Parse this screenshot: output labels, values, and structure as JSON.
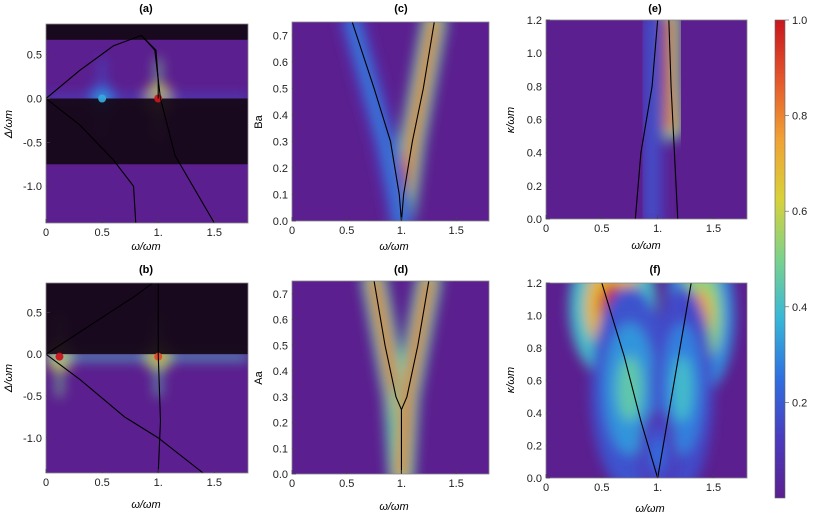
{
  "colorbar": {
    "ticks": [
      {
        "value": 1.0,
        "label": "1.0"
      },
      {
        "value": 0.8,
        "label": "0.8"
      },
      {
        "value": 0.6,
        "label": "0.6"
      },
      {
        "value": 0.4,
        "label": "0.4"
      },
      {
        "value": 0.2,
        "label": "0.2"
      }
    ],
    "colors": [
      "#5b1f8f",
      "#4a3cbe",
      "#2f6fe0",
      "#37b7d8",
      "#7cd28c",
      "#d8d23a",
      "#f0a235",
      "#e4572c",
      "#c8161e"
    ]
  },
  "chart_data": [
    {
      "id": "a",
      "type": "heatmap",
      "title": "(a)",
      "xlabel": "ω/ωm",
      "ylabel": "Δ/ωm",
      "xlim": [
        0,
        1.8
      ],
      "ylim": [
        -1.42,
        0.85
      ],
      "xticks": [
        {
          "v": 0,
          "t": "0"
        },
        {
          "v": 0.5,
          "t": "0.5"
        },
        {
          "v": 1,
          "t": "1."
        },
        {
          "v": 1.5,
          "t": "1.5"
        }
      ],
      "yticks": [
        {
          "v": 0.5,
          "t": "0.5"
        },
        {
          "v": 0,
          "t": "0.0"
        },
        {
          "v": -0.5,
          "t": "-0.5"
        },
        {
          "v": -1,
          "t": "-1.0"
        }
      ],
      "dark_bands": [
        [
          0.67,
          0.85
        ],
        [
          -0.75,
          0
        ]
      ],
      "peaks": [
        {
          "x": 1.0,
          "y": 0.0,
          "level": 1.0
        },
        {
          "x": 0.5,
          "y": 0.0,
          "level": 0.35
        }
      ],
      "curves": [
        [
          [
            0,
            0
          ],
          [
            0.3,
            0.32
          ],
          [
            0.6,
            0.6
          ],
          [
            0.85,
            0.72
          ],
          [
            0.98,
            0.55
          ],
          [
            1.0,
            0.2
          ],
          [
            1.0,
            0.0
          ]
        ],
        [
          [
            0.85,
            0.72
          ],
          [
            0.97,
            0.55
          ],
          [
            1.02,
            0.0
          ],
          [
            1.15,
            -0.65
          ],
          [
            1.5,
            -1.42
          ]
        ],
        [
          [
            0,
            0
          ],
          [
            0.3,
            -0.3
          ],
          [
            0.6,
            -0.7
          ],
          [
            0.78,
            -1.0
          ],
          [
            0.8,
            -1.42
          ]
        ]
      ]
    },
    {
      "id": "b",
      "type": "heatmap",
      "title": "(b)",
      "xlabel": "ω/ωm",
      "ylabel": "Δ/ωm",
      "xlim": [
        0,
        1.8
      ],
      "ylim": [
        -1.42,
        0.85
      ],
      "xticks": [
        {
          "v": 0,
          "t": "0"
        },
        {
          "v": 0.5,
          "t": "0.5"
        },
        {
          "v": 1,
          "t": "1."
        },
        {
          "v": 1.5,
          "t": "1.5"
        }
      ],
      "yticks": [
        {
          "v": 0.5,
          "t": "0.5"
        },
        {
          "v": 0,
          "t": "0.0"
        },
        {
          "v": -0.5,
          "t": "-0.5"
        },
        {
          "v": -1,
          "t": "-1.0"
        }
      ],
      "dark_bands": [
        [
          0,
          0.85
        ]
      ],
      "peaks": [
        {
          "x": 0.12,
          "y": -0.03,
          "level": 1.0
        },
        {
          "x": 1.0,
          "y": -0.03,
          "level": 0.9
        }
      ],
      "curves": [
        [
          [
            0,
            0
          ],
          [
            0.4,
            0.35
          ],
          [
            0.8,
            0.7
          ],
          [
            0.95,
            0.85
          ]
        ],
        [
          [
            0,
            0
          ],
          [
            0.3,
            -0.3
          ],
          [
            0.7,
            -0.75
          ],
          [
            1.0,
            -1.0
          ],
          [
            1.4,
            -1.42
          ]
        ],
        [
          [
            1.0,
            0.85
          ],
          [
            1.0,
            0.0
          ],
          [
            1.02,
            -0.8
          ],
          [
            1.0,
            -1.42
          ]
        ]
      ]
    },
    {
      "id": "c",
      "type": "heatmap",
      "title": "(c)",
      "xlabel": "ω/ωm",
      "ylabel": "Ba",
      "xlim": [
        0,
        1.8
      ],
      "ylim": [
        0,
        0.75
      ],
      "xticks": [
        {
          "v": 0,
          "t": "0"
        },
        {
          "v": 0.5,
          "t": "0.5"
        },
        {
          "v": 1,
          "t": "1."
        },
        {
          "v": 1.5,
          "t": "1.5"
        }
      ],
      "yticks": [
        {
          "v": 0.0,
          "t": "0.0"
        },
        {
          "v": 0.1,
          "t": "0.1"
        },
        {
          "v": 0.2,
          "t": "0.2"
        },
        {
          "v": 0.3,
          "t": "0.3"
        },
        {
          "v": 0.4,
          "t": "0.4"
        },
        {
          "v": 0.5,
          "t": "0.5"
        },
        {
          "v": 0.6,
          "t": "0.6"
        },
        {
          "v": 0.7,
          "t": "0.7"
        }
      ],
      "ridges": [
        {
          "points": [
            [
              1.0,
              0.0
            ],
            [
              1.1,
              0.3
            ],
            [
              1.3,
              0.75
            ]
          ],
          "level": 1.0
        },
        {
          "points": [
            [
              1.0,
              0.0
            ],
            [
              0.85,
              0.3
            ],
            [
              0.55,
              0.75
            ]
          ],
          "level": 0.3
        }
      ],
      "curves": [
        [
          [
            1.0,
            0.0
          ],
          [
            0.98,
            0.1
          ],
          [
            0.9,
            0.3
          ],
          [
            0.75,
            0.5
          ],
          [
            0.55,
            0.75
          ]
        ],
        [
          [
            1.0,
            0.0
          ],
          [
            1.02,
            0.1
          ],
          [
            1.1,
            0.3
          ],
          [
            1.2,
            0.5
          ],
          [
            1.3,
            0.75
          ]
        ]
      ]
    },
    {
      "id": "d",
      "type": "heatmap",
      "title": "(d)",
      "xlabel": "ω/ωm",
      "ylabel": "Aa",
      "xlim": [
        0,
        1.8
      ],
      "ylim": [
        0,
        0.75
      ],
      "xticks": [
        {
          "v": 0,
          "t": "0"
        },
        {
          "v": 0.5,
          "t": "0.5"
        },
        {
          "v": 1,
          "t": "1."
        },
        {
          "v": 1.5,
          "t": "1.5"
        }
      ],
      "yticks": [
        {
          "v": 0.0,
          "t": "0.0"
        },
        {
          "v": 0.1,
          "t": "0.1"
        },
        {
          "v": 0.2,
          "t": "0.2"
        },
        {
          "v": 0.3,
          "t": "0.3"
        },
        {
          "v": 0.4,
          "t": "0.4"
        },
        {
          "v": 0.5,
          "t": "0.5"
        },
        {
          "v": 0.6,
          "t": "0.6"
        },
        {
          "v": 0.7,
          "t": "0.7"
        }
      ],
      "ridges": [
        {
          "points": [
            [
              1.0,
              0.0
            ],
            [
              0.95,
              0.3
            ],
            [
              0.75,
              0.75
            ]
          ],
          "level": 1.0
        },
        {
          "points": [
            [
              1.0,
              0.0
            ],
            [
              1.05,
              0.3
            ],
            [
              1.25,
              0.75
            ]
          ],
          "level": 1.0
        }
      ],
      "curves": [
        [
          [
            1.0,
            0.0
          ],
          [
            1.0,
            0.25
          ],
          [
            0.95,
            0.3
          ],
          [
            0.85,
            0.5
          ],
          [
            0.75,
            0.75
          ]
        ],
        [
          [
            1.0,
            0.25
          ],
          [
            1.05,
            0.3
          ],
          [
            1.15,
            0.5
          ],
          [
            1.25,
            0.75
          ]
        ]
      ]
    },
    {
      "id": "e",
      "type": "heatmap",
      "title": "(e)",
      "xlabel": "ω/ωm",
      "ylabel": "κ/ωm",
      "xlim": [
        0,
        1.8
      ],
      "ylim": [
        0,
        1.2
      ],
      "xticks": [
        {
          "v": 0,
          "t": "0"
        },
        {
          "v": 0.5,
          "t": "0.5"
        },
        {
          "v": 1,
          "t": "1."
        },
        {
          "v": 1.5,
          "t": "1.5"
        }
      ],
      "yticks": [
        {
          "v": 0.0,
          "t": "0.0"
        },
        {
          "v": 0.2,
          "t": "0.2"
        },
        {
          "v": 0.4,
          "t": "0.4"
        },
        {
          "v": 0.6,
          "t": "0.6"
        },
        {
          "v": 0.8,
          "t": "0.8"
        },
        {
          "v": 1.0,
          "t": "1.0"
        },
        {
          "v": 1.2,
          "t": "1.2"
        }
      ],
      "ridges": [
        {
          "points": [
            [
              1.12,
              0.55
            ],
            [
              1.1,
              0.85
            ],
            [
              1.1,
              1.2
            ]
          ],
          "level": 1.0
        },
        {
          "points": [
            [
              0.95,
              0.0
            ],
            [
              0.95,
              1.2
            ]
          ],
          "level": 0.2
        }
      ],
      "curves": [
        [
          [
            0.8,
            0.0
          ],
          [
            0.85,
            0.4
          ],
          [
            0.95,
            0.8
          ],
          [
            1.0,
            1.2
          ]
        ],
        [
          [
            1.18,
            0.0
          ],
          [
            1.15,
            0.4
          ],
          [
            1.12,
            0.8
          ],
          [
            1.1,
            1.2
          ]
        ]
      ]
    },
    {
      "id": "f",
      "type": "heatmap",
      "title": "(f)",
      "xlabel": "ω/ωm",
      "ylabel": "κ/ωm",
      "xlim": [
        0,
        1.8
      ],
      "ylim": [
        0,
        1.2
      ],
      "xticks": [
        {
          "v": 0,
          "t": "0"
        },
        {
          "v": 0.5,
          "t": "0.5"
        },
        {
          "v": 1,
          "t": "1."
        },
        {
          "v": 1.5,
          "t": "1.5"
        }
      ],
      "yticks": [
        {
          "v": 0.0,
          "t": "0.0"
        },
        {
          "v": 0.2,
          "t": "0.2"
        },
        {
          "v": 0.4,
          "t": "0.4"
        },
        {
          "v": 0.6,
          "t": "0.6"
        },
        {
          "v": 0.8,
          "t": "0.8"
        },
        {
          "v": 1.0,
          "t": "1.0"
        },
        {
          "v": 1.2,
          "t": "1.2"
        }
      ],
      "blobs": [
        {
          "x": 0.6,
          "y": 1.05,
          "rx": 0.28,
          "ry": 0.32,
          "level": 1.0
        },
        {
          "x": 1.38,
          "y": 1.0,
          "rx": 0.22,
          "ry": 0.35,
          "level": 0.75
        },
        {
          "x": 0.75,
          "y": 0.55,
          "rx": 0.25,
          "ry": 0.45,
          "level": 0.45
        },
        {
          "x": 1.22,
          "y": 0.55,
          "rx": 0.2,
          "ry": 0.45,
          "level": 0.4
        },
        {
          "x": 1.0,
          "y": 0.15,
          "rx": 0.12,
          "ry": 0.2,
          "level": 0.25
        }
      ],
      "curves": [
        [
          [
            1.0,
            0.0
          ],
          [
            0.85,
            0.35
          ],
          [
            0.7,
            0.75
          ],
          [
            0.5,
            1.2
          ]
        ],
        [
          [
            1.0,
            0.0
          ],
          [
            1.1,
            0.4
          ],
          [
            1.2,
            0.8
          ],
          [
            1.3,
            1.2
          ]
        ]
      ]
    }
  ]
}
